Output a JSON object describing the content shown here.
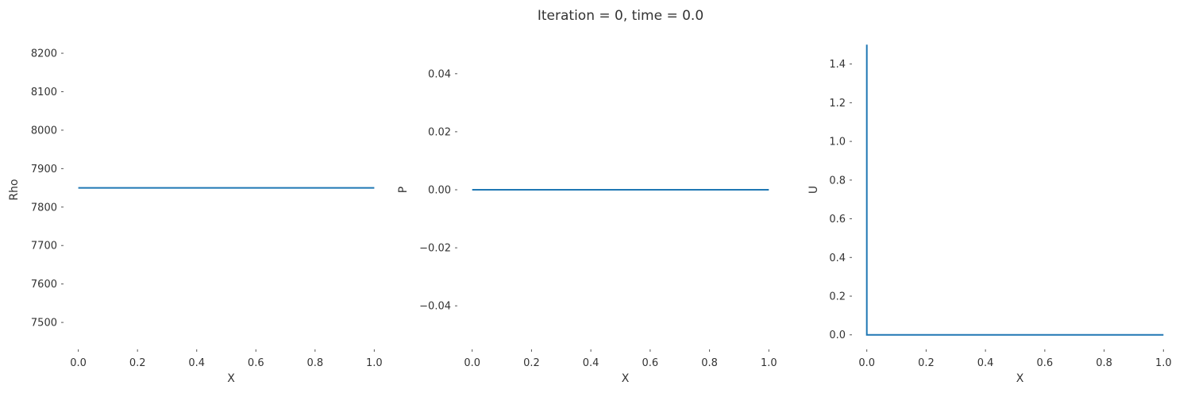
{
  "figure": {
    "title": "Iteration = 0, time = 0.0"
  },
  "style": {
    "line_color": "#1f77b4",
    "tick_color": "#555555",
    "text_color": "#333333"
  },
  "chart_data": [
    {
      "type": "line",
      "xlabel": "X",
      "ylabel": "Rho",
      "xlim": [
        -0.05,
        1.05
      ],
      "ylim": [
        7430,
        8260
      ],
      "xticks": [
        0.0,
        0.2,
        0.4,
        0.6,
        0.8,
        1.0
      ],
      "xtick_labels": [
        "0.0",
        "0.2",
        "0.4",
        "0.6",
        "0.8",
        "1.0"
      ],
      "yticks": [
        7500,
        7600,
        7700,
        7800,
        7900,
        8000,
        8100,
        8200
      ],
      "ytick_labels": [
        "7500",
        "7600",
        "7700",
        "7800",
        "7900",
        "8000",
        "8100",
        "8200"
      ],
      "grid": false,
      "series": [
        {
          "x": [
            0.0,
            1.0
          ],
          "y": [
            7850,
            7850
          ]
        }
      ]
    },
    {
      "type": "line",
      "xlabel": "X",
      "ylabel": "P",
      "xlim": [
        -0.05,
        1.05
      ],
      "ylim": [
        -0.055,
        0.055
      ],
      "xticks": [
        0.0,
        0.2,
        0.4,
        0.6,
        0.8,
        1.0
      ],
      "xtick_labels": [
        "0.0",
        "0.2",
        "0.4",
        "0.6",
        "0.8",
        "1.0"
      ],
      "yticks": [
        -0.04,
        -0.02,
        0.0,
        0.02,
        0.04
      ],
      "ytick_labels": [
        "−0.04",
        "−0.02",
        "0.00",
        "0.02",
        "0.04"
      ],
      "grid": false,
      "series": [
        {
          "x": [
            0.0,
            1.0
          ],
          "y": [
            0.0,
            0.0
          ]
        }
      ]
    },
    {
      "type": "line",
      "xlabel": "X",
      "ylabel": "U",
      "xlim": [
        -0.05,
        1.05
      ],
      "ylim": [
        -0.075,
        1.575
      ],
      "xticks": [
        0.0,
        0.2,
        0.4,
        0.6,
        0.8,
        1.0
      ],
      "xtick_labels": [
        "0.0",
        "0.2",
        "0.4",
        "0.6",
        "0.8",
        "1.0"
      ],
      "yticks": [
        0.0,
        0.2,
        0.4,
        0.6,
        0.8,
        1.0,
        1.2,
        1.4
      ],
      "ytick_labels": [
        "0.0",
        "0.2",
        "0.4",
        "0.6",
        "0.8",
        "1.0",
        "1.2",
        "1.4"
      ],
      "grid": false,
      "series": [
        {
          "x": [
            0.0,
            0.0,
            1.0
          ],
          "y": [
            1.5,
            0.0,
            0.0
          ]
        }
      ]
    }
  ]
}
